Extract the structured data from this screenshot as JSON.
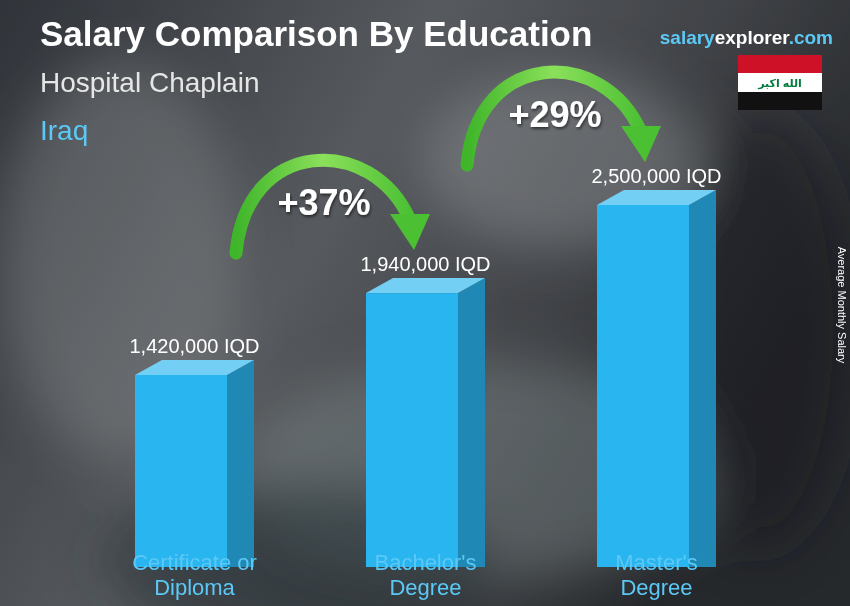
{
  "chart_data": {
    "type": "bar",
    "title": "Salary Comparison By Education",
    "subtitle": "Hospital Chaplain",
    "country": "Iraq",
    "source": [
      "salary",
      "explorer",
      ".com"
    ],
    "flag_text": "الله اكبر",
    "y_label": "Average Monthly Salary",
    "categories": [
      "Certificate or Diploma",
      "Bachelor's Degree",
      "Master's Degree"
    ],
    "values": [
      1420000,
      1940000,
      2500000
    ],
    "value_labels": [
      "1,420,000 IQD",
      "1,940,000 IQD",
      "2,500,000 IQD"
    ],
    "data_labels": true,
    "color": "#29b5f0",
    "ylim": [
      200000,
      2700000
    ],
    "tick_labels": false,
    "grid": false,
    "annotations": [
      "+37%",
      "+29%"
    ]
  }
}
